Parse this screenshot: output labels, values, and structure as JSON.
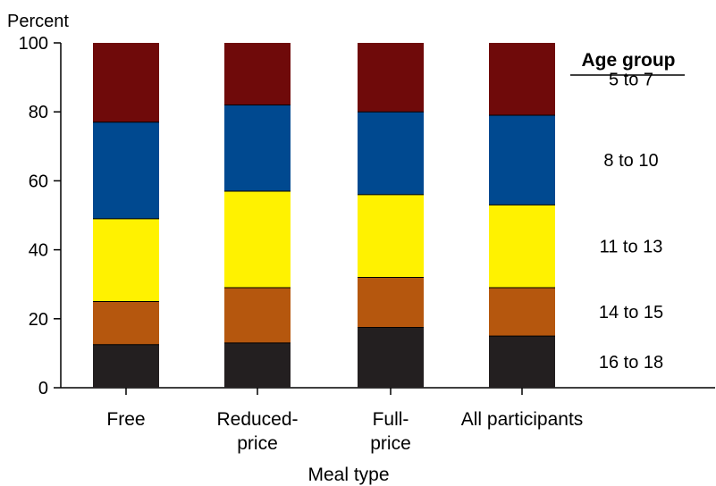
{
  "chart_data": {
    "type": "bar",
    "stacked": true,
    "ylabel": "Percent",
    "xlabel": "Meal type",
    "ylim": [
      0,
      100
    ],
    "yticks": [
      "0",
      "20",
      "40",
      "60",
      "80",
      "100"
    ],
    "grid": false,
    "legend_placement": "right",
    "legend_title": "Age group",
    "categories": [
      [
        "Free"
      ],
      [
        "Reduced-",
        "price"
      ],
      [
        "Full-",
        "price"
      ],
      [
        "All participants"
      ]
    ],
    "series": [
      {
        "name": "16 to 18",
        "color": "#231f20",
        "values": [
          12.5,
          13,
          17.5,
          15
        ]
      },
      {
        "name": "14 to 15",
        "color": "#b5570e",
        "values": [
          12.5,
          16,
          14.5,
          14
        ]
      },
      {
        "name": "11 to 13",
        "color": "#fff200",
        "values": [
          24,
          28,
          24,
          24
        ]
      },
      {
        "name": "8 to 10",
        "color": "#004990",
        "values": [
          28,
          25,
          24,
          26
        ]
      },
      {
        "name": "5 to 7",
        "color": "#6f0a0a",
        "values": [
          23,
          18,
          20,
          21
        ]
      }
    ]
  }
}
